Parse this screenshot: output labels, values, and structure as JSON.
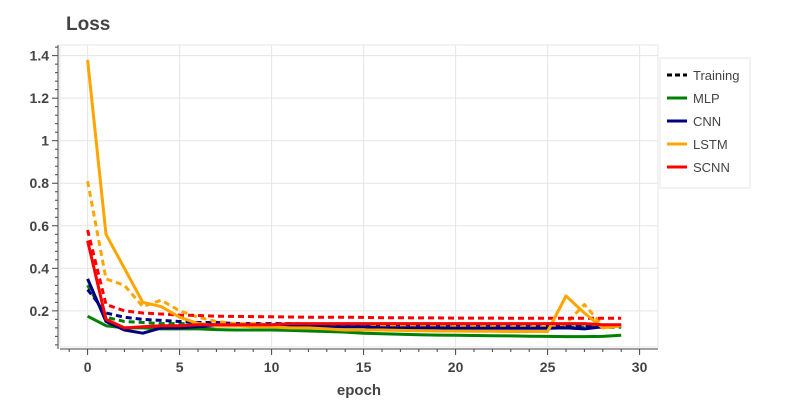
{
  "chart_data": {
    "type": "line",
    "title": "Loss",
    "xlabel": "epoch",
    "ylabel": "",
    "xlim": [
      -1.5,
      31
    ],
    "ylim": [
      0.03,
      1.45
    ],
    "xticks": [
      0,
      5,
      10,
      15,
      20,
      25,
      30
    ],
    "yticks": [
      0.2,
      0.4,
      0.6,
      0.8,
      1.0,
      1.2,
      1.4
    ],
    "ytick_labels": [
      "0.2",
      "0.4",
      "0.6",
      "0.8",
      "1",
      "1.2",
      "1.4"
    ],
    "grid": true,
    "legend_position": "right",
    "legend": [
      {
        "label": "Training",
        "color": "#000000",
        "dash": true
      },
      {
        "label": "MLP",
        "color": "#008000",
        "dash": false
      },
      {
        "label": "CNN",
        "color": "#000080",
        "dash": false
      },
      {
        "label": "LSTM",
        "color": "#FFA500",
        "dash": false
      },
      {
        "label": "SCNN",
        "color": "#FF0000",
        "dash": false
      }
    ],
    "series": [
      {
        "model": "MLP",
        "kind": "validation",
        "color": "#008000",
        "dash": false,
        "x": [
          0,
          1,
          2,
          3,
          4,
          5,
          6,
          7,
          8,
          9,
          10,
          11,
          12,
          13,
          14,
          15,
          16,
          17,
          18,
          19,
          20,
          21,
          22,
          23,
          24,
          25,
          26,
          27,
          28,
          29
        ],
        "y": [
          0.175,
          0.13,
          0.12,
          0.12,
          0.115,
          0.115,
          0.115,
          0.112,
          0.11,
          0.11,
          0.11,
          0.108,
          0.105,
          0.103,
          0.1,
          0.095,
          0.092,
          0.09,
          0.088,
          0.086,
          0.085,
          0.084,
          0.083,
          0.082,
          0.081,
          0.08,
          0.079,
          0.079,
          0.08,
          0.085
        ]
      },
      {
        "model": "MLP",
        "kind": "training",
        "color": "#008000",
        "dash": true,
        "x": [
          0,
          1,
          2,
          3,
          4,
          5,
          6,
          7,
          8,
          9,
          10,
          11,
          12,
          13,
          14,
          15,
          16,
          17,
          18,
          19,
          20,
          21,
          22,
          23,
          24,
          25,
          26,
          27,
          28,
          29
        ],
        "y": [
          0.32,
          0.17,
          0.15,
          0.145,
          0.14,
          0.14,
          0.138,
          0.136,
          0.135,
          0.134,
          0.133,
          0.132,
          0.131,
          0.13,
          0.13,
          0.129,
          0.128,
          0.128,
          0.127,
          0.127,
          0.126,
          0.126,
          0.125,
          0.125,
          0.125,
          0.124,
          0.124,
          0.124,
          0.123,
          0.123
        ]
      },
      {
        "model": "CNN",
        "kind": "validation",
        "color": "#000080",
        "dash": false,
        "x": [
          0,
          1,
          2,
          3,
          4,
          5,
          6,
          7,
          8,
          9,
          10,
          11,
          12,
          13,
          14,
          15,
          16,
          17,
          18,
          19,
          20,
          21,
          22,
          23,
          24,
          25,
          26,
          27,
          28,
          29
        ],
        "y": [
          0.35,
          0.15,
          0.11,
          0.095,
          0.12,
          0.12,
          0.125,
          0.13,
          0.13,
          0.13,
          0.13,
          0.13,
          0.13,
          0.125,
          0.125,
          0.125,
          0.12,
          0.12,
          0.12,
          0.12,
          0.118,
          0.118,
          0.118,
          0.118,
          0.118,
          0.118,
          0.12,
          0.115,
          0.125,
          0.13
        ]
      },
      {
        "model": "CNN",
        "kind": "training",
        "color": "#000080",
        "dash": true,
        "x": [
          0,
          1,
          2,
          3,
          4,
          5,
          6,
          7,
          8,
          9,
          10,
          11,
          12,
          13,
          14,
          15,
          16,
          17,
          18,
          19,
          20,
          21,
          22,
          23,
          24,
          25,
          26,
          27,
          28,
          29
        ],
        "y": [
          0.3,
          0.19,
          0.17,
          0.16,
          0.155,
          0.15,
          0.145,
          0.145,
          0.14,
          0.14,
          0.14,
          0.14,
          0.138,
          0.138,
          0.137,
          0.136,
          0.135,
          0.135,
          0.134,
          0.134,
          0.133,
          0.133,
          0.132,
          0.132,
          0.132,
          0.131,
          0.131,
          0.13,
          0.13,
          0.13
        ]
      },
      {
        "model": "LSTM",
        "kind": "validation",
        "color": "#FFA500",
        "dash": false,
        "x": [
          0,
          1,
          2,
          3,
          4,
          5,
          6,
          7,
          8,
          9,
          10,
          11,
          12,
          13,
          14,
          15,
          16,
          17,
          18,
          19,
          20,
          21,
          22,
          23,
          24,
          25,
          26,
          27,
          28,
          29
        ],
        "y": [
          1.38,
          0.56,
          0.4,
          0.24,
          0.22,
          0.17,
          0.14,
          0.13,
          0.13,
          0.125,
          0.125,
          0.12,
          0.12,
          0.115,
          0.11,
          0.11,
          0.11,
          0.108,
          0.106,
          0.105,
          0.105,
          0.104,
          0.104,
          0.103,
          0.103,
          0.103,
          0.27,
          0.19,
          0.12,
          0.13
        ]
      },
      {
        "model": "LSTM",
        "kind": "training",
        "color": "#FFA500",
        "dash": true,
        "x": [
          0,
          1,
          2,
          3,
          4,
          5,
          6,
          7,
          8,
          9,
          10,
          11,
          12,
          13,
          14,
          15,
          16,
          17,
          18,
          19,
          20,
          21,
          22,
          23,
          24,
          25,
          26,
          27,
          28,
          29
        ],
        "y": [
          0.81,
          0.35,
          0.32,
          0.22,
          0.25,
          0.2,
          0.17,
          0.15,
          0.14,
          0.14,
          0.135,
          0.13,
          0.13,
          0.13,
          0.128,
          0.128,
          0.127,
          0.127,
          0.126,
          0.126,
          0.125,
          0.125,
          0.125,
          0.124,
          0.124,
          0.124,
          0.14,
          0.23,
          0.13,
          0.125
        ]
      },
      {
        "model": "SCNN",
        "kind": "validation",
        "color": "#FF0000",
        "dash": false,
        "x": [
          0,
          1,
          2,
          3,
          4,
          5,
          6,
          7,
          8,
          9,
          10,
          11,
          12,
          13,
          14,
          15,
          16,
          17,
          18,
          19,
          20,
          21,
          22,
          23,
          24,
          25,
          26,
          27,
          28,
          29
        ],
        "y": [
          0.53,
          0.16,
          0.12,
          0.125,
          0.13,
          0.13,
          0.135,
          0.135,
          0.135,
          0.135,
          0.135,
          0.14,
          0.14,
          0.14,
          0.14,
          0.14,
          0.14,
          0.14,
          0.14,
          0.14,
          0.14,
          0.14,
          0.14,
          0.14,
          0.14,
          0.14,
          0.14,
          0.14,
          0.135,
          0.135
        ]
      },
      {
        "model": "SCNN",
        "kind": "training",
        "color": "#FF0000",
        "dash": true,
        "x": [
          0,
          1,
          2,
          3,
          4,
          5,
          6,
          7,
          8,
          9,
          10,
          11,
          12,
          13,
          14,
          15,
          16,
          17,
          18,
          19,
          20,
          21,
          22,
          23,
          24,
          25,
          26,
          27,
          28,
          29
        ],
        "y": [
          0.58,
          0.23,
          0.2,
          0.19,
          0.185,
          0.18,
          0.178,
          0.175,
          0.174,
          0.173,
          0.172,
          0.171,
          0.17,
          0.17,
          0.17,
          0.169,
          0.168,
          0.168,
          0.167,
          0.167,
          0.166,
          0.166,
          0.166,
          0.165,
          0.165,
          0.165,
          0.165,
          0.165,
          0.165,
          0.165
        ]
      }
    ]
  }
}
